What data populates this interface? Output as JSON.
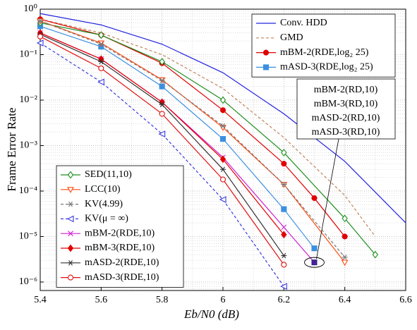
{
  "chart_data": {
    "type": "line",
    "xlabel": "Eb/N0 (dB)",
    "ylabel": "Frame Error Rate",
    "xlim": [
      5.4,
      6.6
    ],
    "xticks": [
      5.4,
      5.6,
      5.8,
      6,
      6.2,
      6.4,
      6.6
    ],
    "ylim": [
      6.5e-07,
      1
    ],
    "log_y": true,
    "grid": true,
    "yticks": [
      {
        "value": 1e-06,
        "label": "10⁻⁶"
      },
      {
        "value": 1e-05,
        "label": "10⁻⁵"
      },
      {
        "value": 0.0001,
        "label": "10⁻⁴"
      },
      {
        "value": 0.001,
        "label": "10⁻³"
      },
      {
        "value": 0.01,
        "label": "10⁻²"
      },
      {
        "value": 0.1,
        "label": "10⁻¹"
      },
      {
        "value": 1,
        "label": "10⁰"
      }
    ],
    "series": [
      {
        "name": "Conv. HDD",
        "color": "#2323e0",
        "marker": "none",
        "dashed": false,
        "legend": "northeast",
        "x": [
          5.4,
          5.6,
          5.8,
          6.0,
          6.2,
          6.4,
          6.6
        ],
        "values": [
          0.8,
          0.45,
          0.17,
          0.04,
          0.005,
          0.00045,
          2e-05
        ]
      },
      {
        "name": "GMD",
        "color": "#c0845a",
        "marker": "none",
        "dashed": true,
        "legend": "northeast",
        "x": [
          5.4,
          5.6,
          5.8,
          6.0,
          6.2,
          6.4,
          6.5
        ],
        "values": [
          0.6,
          0.3,
          0.1,
          0.018,
          0.0015,
          8e-05,
          1e-05
        ]
      },
      {
        "name": "mBM-2(RDE,log₂ 25)",
        "color": "#e00000",
        "marker": "circle",
        "dashed": false,
        "legend": "northeast",
        "x": [
          5.4,
          5.6,
          5.8,
          6.0,
          6.2,
          6.3,
          6.4
        ],
        "values": [
          0.6,
          0.27,
          0.065,
          0.006,
          0.0004,
          7e-05,
          1e-05
        ]
      },
      {
        "name": "mASD-3(RDE,log₂ 25)",
        "color": "#3b8fe0",
        "marker": "square",
        "dashed": false,
        "legend": "northeast",
        "x": [
          5.4,
          5.6,
          5.8,
          6.0,
          6.2,
          6.3
        ],
        "values": [
          0.42,
          0.15,
          0.02,
          0.0014,
          4e-05,
          5.5e-06
        ]
      },
      {
        "name": "SED(11,10)",
        "color": "#1e8f1e",
        "marker": "diamond-open",
        "dashed": false,
        "legend": "southwest",
        "x": [
          5.4,
          5.6,
          5.8,
          6.0,
          6.2,
          6.4,
          6.5
        ],
        "values": [
          0.5,
          0.27,
          0.07,
          0.01,
          0.0007,
          2.5e-05,
          4e-06
        ]
      },
      {
        "name": "LCC(10)",
        "color": "#ff4a10",
        "marker": "triangle-down",
        "dashed": false,
        "legend": "southwest",
        "x": [
          5.4,
          5.6,
          5.8,
          6.0,
          6.2,
          6.4
        ],
        "values": [
          0.55,
          0.18,
          0.028,
          0.0025,
          0.00014,
          2.7e-06
        ]
      },
      {
        "name": "KV(4.99)",
        "color": "#777777",
        "marker": "star",
        "dashed": true,
        "legend": "southwest",
        "x": [
          5.4,
          5.6,
          5.8,
          6.0,
          6.2,
          6.4
        ],
        "values": [
          0.55,
          0.17,
          0.027,
          0.0027,
          0.00014,
          3.5e-06
        ]
      },
      {
        "name": "KV(μ = ∞)",
        "color": "#3a3ae0",
        "marker": "triangle-left",
        "dashed": true,
        "legend": "southwest",
        "x": [
          5.4,
          5.6,
          5.8,
          6.0,
          6.2
        ],
        "values": [
          0.18,
          0.025,
          0.0018,
          6.5e-05,
          8e-07
        ]
      },
      {
        "name": "mBM-2(RDE,10)",
        "color": "#d020d0",
        "marker": "x",
        "dashed": false,
        "legend": "southwest",
        "x": [
          5.4,
          5.6,
          5.8,
          6.0,
          6.2,
          6.3
        ],
        "values": [
          0.3,
          0.08,
          0.009,
          0.00055,
          1.6e-05,
          2.7e-06
        ]
      },
      {
        "name": "mBM-3(RDE,10)",
        "color": "#e00000",
        "marker": "diamond",
        "dashed": false,
        "legend": "southwest",
        "x": [
          5.4,
          5.6,
          5.8,
          6.0,
          6.2
        ],
        "values": [
          0.3,
          0.08,
          0.009,
          0.0005,
          1.1e-05
        ]
      },
      {
        "name": "mASD-2(RDE,10)",
        "color": "#333333",
        "marker": "star",
        "dashed": false,
        "legend": "southwest",
        "x": [
          5.4,
          5.6,
          5.8,
          6.0,
          6.2
        ],
        "values": [
          0.28,
          0.07,
          0.008,
          0.0003,
          3.8e-06
        ]
      },
      {
        "name": "mASD-3(RDE,10)",
        "color": "#e01010",
        "marker": "circle-open",
        "dashed": false,
        "legend": "southwest",
        "x": [
          5.4,
          5.6,
          5.8,
          6.0,
          6.2
        ],
        "values": [
          0.25,
          0.05,
          0.005,
          0.00018,
          2.4e-06
        ]
      }
    ],
    "annotation": {
      "lines": [
        "mBM-2(RD,10)",
        "mBM-3(RD,10)",
        "mASD-2(RD,10)",
        "mASD-3(RD,10)"
      ],
      "x": 6.3,
      "y": 2.7e-06,
      "color": "#4b1f9e"
    }
  }
}
